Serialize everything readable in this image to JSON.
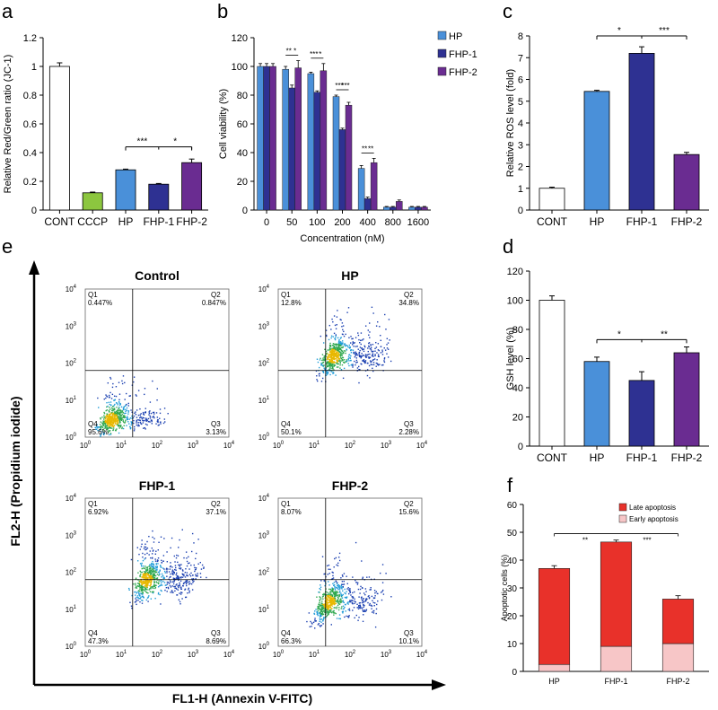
{
  "chart_data": {
    "panel_a": {
      "type": "bar",
      "letter": "a",
      "categories": [
        "CONT",
        "CCCP",
        "HP",
        "FHP-1",
        "FHP-2"
      ],
      "values": [
        1.0,
        0.12,
        0.28,
        0.18,
        0.33
      ],
      "errors": [
        0.025,
        0.005,
        0.005,
        0.005,
        0.025
      ],
      "colors": [
        "#ffffff",
        "#8cc63f",
        "#4a90d9",
        "#2e3192",
        "#6a2c91"
      ],
      "ylabel": "Relative Red/Green ratio (JC-1)",
      "ylim": [
        0,
        1.2
      ],
      "yticks": [
        "0",
        "0.2",
        "0.4",
        "0.6",
        "0.8",
        "1",
        "1.2"
      ],
      "significance": [
        {
          "from": 2,
          "to": 3,
          "label": "***"
        },
        {
          "from": 3,
          "to": 4,
          "label": "*"
        }
      ]
    },
    "panel_b": {
      "type": "bar",
      "letter": "b",
      "categories": [
        "0",
        "50",
        "100",
        "200",
        "400",
        "800",
        "1600"
      ],
      "series": [
        {
          "name": "HP",
          "color": "#4a90d9",
          "values": [
            100,
            98,
            95,
            79,
            29,
            2,
            2
          ],
          "errors": [
            2,
            2,
            1,
            1,
            2,
            0.5,
            0.5
          ]
        },
        {
          "name": "FHP-1",
          "color": "#2e3192",
          "values": [
            100,
            85,
            82,
            56,
            8,
            2,
            2
          ],
          "errors": [
            2,
            2,
            1,
            1,
            1,
            0.5,
            0.5
          ]
        },
        {
          "name": "FHP-2",
          "color": "#6a2c91",
          "values": [
            100,
            99,
            97,
            73,
            33,
            6,
            2
          ],
          "errors": [
            2,
            5,
            5,
            2,
            3,
            1,
            0.5
          ]
        }
      ],
      "ylabel": "Cell viability (%)",
      "xlabel": "Concentration (nM)",
      "ylim": [
        0,
        120
      ],
      "yticks": [
        "0",
        "20",
        "40",
        "60",
        "80",
        "100",
        "120"
      ],
      "significance": [
        "**",
        "*",
        "***",
        "*",
        "***",
        "***",
        "**",
        "**"
      ]
    },
    "panel_c": {
      "type": "bar",
      "letter": "c",
      "categories": [
        "CONT",
        "HP",
        "FHP-1",
        "FHP-2"
      ],
      "values": [
        1.0,
        5.45,
        7.2,
        2.55
      ],
      "errors": [
        0.05,
        0.05,
        0.3,
        0.1
      ],
      "colors": [
        "#ffffff",
        "#4a90d9",
        "#2e3192",
        "#6a2c91"
      ],
      "ylabel": "Relative ROS level (fold)",
      "ylim": [
        0,
        8
      ],
      "yticks": [
        "0",
        "1",
        "2",
        "3",
        "4",
        "5",
        "6",
        "7",
        "8"
      ],
      "significance": [
        {
          "from": 1,
          "to": 2,
          "label": "*"
        },
        {
          "from": 2,
          "to": 3,
          "label": "***"
        }
      ]
    },
    "panel_d": {
      "type": "bar",
      "letter": "d",
      "categories": [
        "CONT",
        "HP",
        "FHP-1",
        "FHP-2"
      ],
      "values": [
        100,
        58,
        45,
        64
      ],
      "errors": [
        3,
        3,
        6,
        4
      ],
      "colors": [
        "#ffffff",
        "#4a90d9",
        "#2e3192",
        "#6a2c91"
      ],
      "ylabel": "GSH level (%)",
      "ylim": [
        0,
        120
      ],
      "yticks": [
        "0",
        "20",
        "40",
        "60",
        "80",
        "100",
        "120"
      ],
      "significance": [
        {
          "from": 1,
          "to": 2,
          "label": "*"
        },
        {
          "from": 2,
          "to": 3,
          "label": "**"
        }
      ]
    },
    "panel_f": {
      "type": "stacked-bar",
      "letter": "f",
      "categories": [
        "HP",
        "FHP-1",
        "FHP-2"
      ],
      "series": [
        {
          "name": "Early apoptosis",
          "color": "#f7c6c7",
          "values": [
            2.5,
            9,
            10
          ],
          "errors": [
            0.3,
            0.5,
            0.7
          ]
        },
        {
          "name": "Late apoptosis",
          "color": "#e8312a",
          "values": [
            34.5,
            37.5,
            16
          ],
          "errors": [
            1,
            0.7,
            1.2
          ]
        }
      ],
      "ylabel": "Apoptotic cells (%)",
      "ylim": [
        0,
        60
      ],
      "yticks": [
        "0",
        "10",
        "20",
        "30",
        "40",
        "50",
        "60"
      ],
      "legend": [
        "Late apoptosis",
        "Early apoptosis"
      ],
      "significance": [
        {
          "from": 0,
          "to": 1,
          "label": "**"
        },
        {
          "from": 1,
          "to": 2,
          "label": "***"
        }
      ]
    },
    "panel_e": {
      "type": "scatter",
      "letter": "e",
      "xlabel": "FL1-H (Annexin V-FITC)",
      "ylabel": "FL2-H (Propidium iodide)",
      "tick_base": "10",
      "tick_exps": [
        "0",
        "1",
        "2",
        "3",
        "4"
      ],
      "plots": [
        {
          "title": "Control",
          "q1_label": "Q1",
          "q1": "0.447%",
          "q2_label": "Q2",
          "q2": "0.847%",
          "q3_label": "Q3",
          "q3": "3.13%",
          "q4_label": "Q4",
          "q4": "95.6%"
        },
        {
          "title": "HP",
          "q1_label": "Q1",
          "q1": "12.8%",
          "q2_label": "Q2",
          "q2": "34.8%",
          "q3_label": "Q3",
          "q3": "2.28%",
          "q4_label": "Q4",
          "q4": "50.1%"
        },
        {
          "title": "FHP-1",
          "q1_label": "Q1",
          "q1": "6.92%",
          "q2_label": "Q2",
          "q2": "37.1%",
          "q3_label": "Q3",
          "q3": "8.69%",
          "q4_label": "Q4",
          "q4": "47.3%"
        },
        {
          "title": "FHP-2",
          "q1_label": "Q1",
          "q1": "8.07%",
          "q2_label": "Q2",
          "q2": "15.6%",
          "q3_label": "Q3",
          "q3": "10.1%",
          "q4_label": "Q4",
          "q4": "66.3%"
        }
      ]
    }
  }
}
